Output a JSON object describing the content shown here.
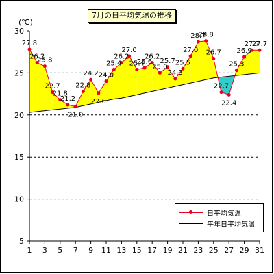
{
  "chart_data": {
    "type": "line",
    "title": "7月の日平均気温の推移",
    "ylabel": "(℃)",
    "xlabel": "",
    "ylim": [
      5,
      30
    ],
    "yticks": [
      5,
      10,
      15,
      20,
      25,
      30
    ],
    "grid": true,
    "legend": "bottom-right",
    "x": [
      1,
      2,
      3,
      4,
      5,
      6,
      7,
      8,
      9,
      10,
      11,
      12,
      13,
      14,
      15,
      16,
      17,
      18,
      19,
      20,
      21,
      22,
      23,
      24,
      25,
      26,
      27,
      28,
      29,
      30,
      31
    ],
    "xtick_labels": [
      "1",
      "3",
      "5",
      "7",
      "9",
      "11",
      "13",
      "15",
      "17",
      "19",
      "21",
      "23",
      "25",
      "27",
      "29",
      "31"
    ],
    "series": [
      {
        "name": "日平均気温",
        "values": [
          27.8,
          26.2,
          25.8,
          22.7,
          21.8,
          21.2,
          21.0,
          22.8,
          24.2,
          22.6,
          24.0,
          25.4,
          26.2,
          27.0,
          25.4,
          25.6,
          26.2,
          25.0,
          25.7,
          24.3,
          25.5,
          27.0,
          28.7,
          28.8,
          26.7,
          22.7,
          22.4,
          25.3,
          26.9,
          27.7,
          27.7
        ],
        "color": "#e8001c"
      },
      {
        "name": "平年日平均気温",
        "values": [
          20.3,
          20.4,
          20.5,
          20.6,
          20.7,
          20.8,
          20.9,
          21.1,
          21.3,
          21.5,
          21.7,
          21.9,
          22.0,
          22.2,
          22.4,
          22.6,
          22.8,
          23.0,
          23.2,
          23.4,
          23.6,
          23.8,
          24.0,
          24.2,
          24.4,
          24.5,
          24.6,
          24.7,
          24.8,
          24.9,
          25.0
        ],
        "color": "#000000"
      }
    ],
    "fill_colors": {
      "above": "#ffff00",
      "below": "#33cccc"
    }
  }
}
